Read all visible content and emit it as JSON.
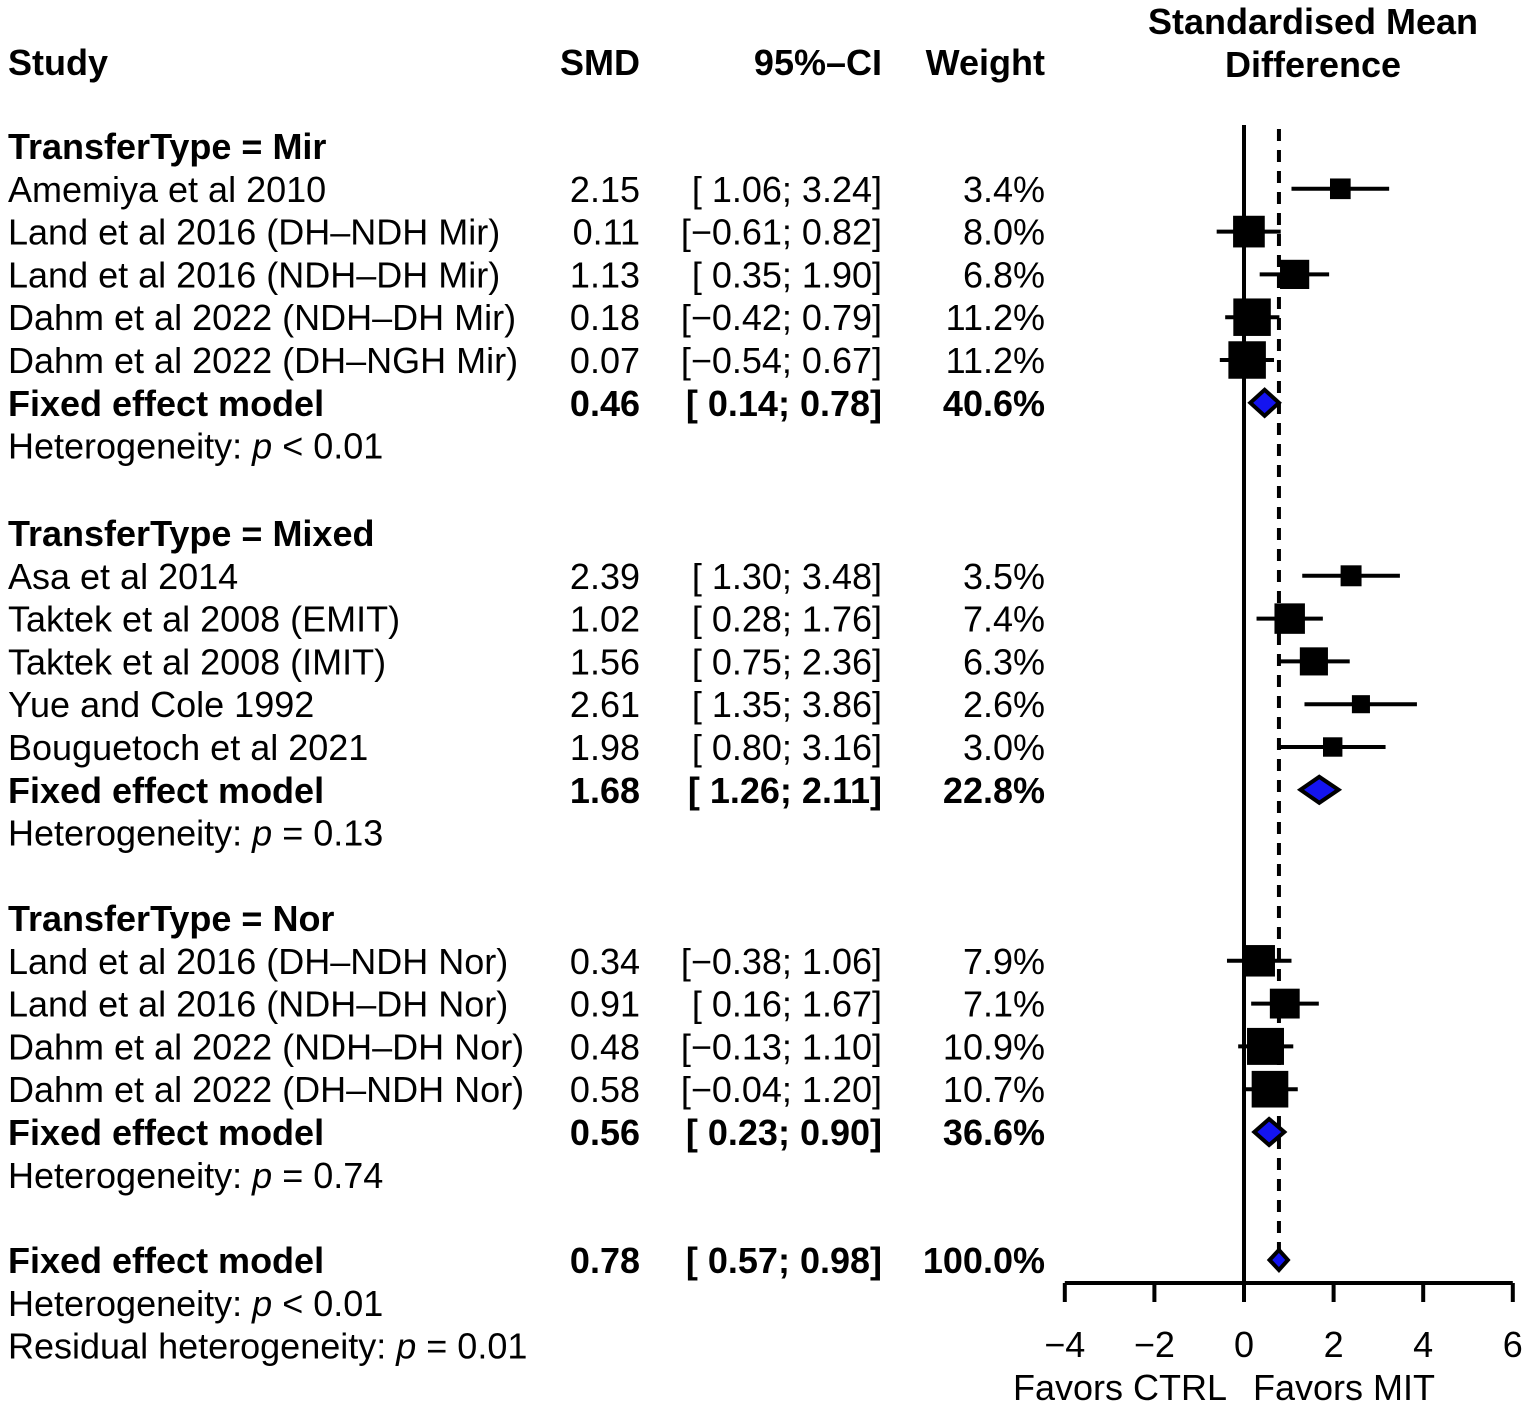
{
  "chart_data": {
    "type": "forest",
    "effect_measure": "SMD",
    "columns": {
      "study": "Study",
      "smd": "SMD",
      "ci": "95%–CI",
      "weight": "Weight"
    },
    "effect_header": [
      "Standardised Mean",
      "Difference"
    ],
    "xlabel_left": "Favors CTRL",
    "xlabel_right": "Favors MIT",
    "xlim": [
      -4,
      6
    ],
    "ticks": [
      -4,
      -2,
      0,
      2,
      4,
      6
    ],
    "tick_labels": [
      "−4",
      "−2",
      "0",
      "2",
      "4",
      "6"
    ],
    "ref_line": 0,
    "overall_line": 0.78,
    "colors": {
      "diamond_fill": "#1414f0",
      "ink": "#000000"
    },
    "groups": [
      {
        "title": "TransferType = Mir",
        "studies": [
          {
            "label": "Amemiya et al 2010",
            "smd": 2.15,
            "ci": [
              1.06,
              3.24
            ],
            "smd_text": "2.15",
            "ci_text": "[ 1.06; 3.24]",
            "weight": 3.4,
            "weight_text": "3.4%"
          },
          {
            "label": "Land et al 2016 (DH–NDH Mir)",
            "smd": 0.11,
            "ci": [
              -0.61,
              0.82
            ],
            "smd_text": "0.11",
            "ci_text": "[−0.61; 0.82]",
            "weight": 8.0,
            "weight_text": "8.0%"
          },
          {
            "label": "Land et al 2016 (NDH–DH Mir)",
            "smd": 1.13,
            "ci": [
              0.35,
              1.9
            ],
            "smd_text": "1.13",
            "ci_text": "[ 0.35; 1.90]",
            "weight": 6.8,
            "weight_text": "6.8%"
          },
          {
            "label": "Dahm et al 2022 (NDH–DH Mir)",
            "smd": 0.18,
            "ci": [
              -0.42,
              0.79
            ],
            "smd_text": "0.18",
            "ci_text": "[−0.42; 0.79]",
            "weight": 11.2,
            "weight_text": "11.2%"
          },
          {
            "label": "Dahm et al 2022 (DH–NGH Mir)",
            "smd": 0.07,
            "ci": [
              -0.54,
              0.67
            ],
            "smd_text": "0.07",
            "ci_text": "[−0.54; 0.67]",
            "weight": 11.2,
            "weight_text": "11.2%"
          }
        ],
        "fixed": {
          "label": "Fixed effect model",
          "smd": 0.46,
          "ci": [
            0.14,
            0.78
          ],
          "smd_text": "0.46",
          "ci_text": "[ 0.14; 0.78]",
          "weight_text": "40.6%"
        },
        "heterogeneity": {
          "prefix": "Heterogeneity:",
          "p": "p",
          "rest": "< 0.01"
        }
      },
      {
        "title": "TransferType = Mixed",
        "studies": [
          {
            "label": "Asa et al 2014",
            "smd": 2.39,
            "ci": [
              1.3,
              3.48
            ],
            "smd_text": "2.39",
            "ci_text": "[ 1.30; 3.48]",
            "weight": 3.5,
            "weight_text": "3.5%"
          },
          {
            "label": "Taktek et al 2008 (EMIT)",
            "smd": 1.02,
            "ci": [
              0.28,
              1.76
            ],
            "smd_text": "1.02",
            "ci_text": "[ 0.28; 1.76]",
            "weight": 7.4,
            "weight_text": "7.4%"
          },
          {
            "label": "Taktek et al 2008 (IMIT)",
            "smd": 1.56,
            "ci": [
              0.75,
              2.36
            ],
            "smd_text": "1.56",
            "ci_text": "[ 0.75; 2.36]",
            "weight": 6.3,
            "weight_text": "6.3%"
          },
          {
            "label": "Yue and Cole 1992",
            "smd": 2.61,
            "ci": [
              1.35,
              3.86
            ],
            "smd_text": "2.61",
            "ci_text": "[ 1.35; 3.86]",
            "weight": 2.6,
            "weight_text": "2.6%"
          },
          {
            "label": "Bouguetoch et al 2021",
            "smd": 1.98,
            "ci": [
              0.8,
              3.16
            ],
            "smd_text": "1.98",
            "ci_text": "[ 0.80; 3.16]",
            "weight": 3.0,
            "weight_text": "3.0%"
          }
        ],
        "fixed": {
          "label": "Fixed effect model",
          "smd": 1.68,
          "ci": [
            1.26,
            2.11
          ],
          "smd_text": "1.68",
          "ci_text": "[ 1.26; 2.11]",
          "weight_text": "22.8%"
        },
        "heterogeneity": {
          "prefix": "Heterogeneity:",
          "p": "p",
          "rest": "= 0.13"
        }
      },
      {
        "title": "TransferType = Nor",
        "studies": [
          {
            "label": "Land et al 2016 (DH–NDH Nor)",
            "smd": 0.34,
            "ci": [
              -0.38,
              1.06
            ],
            "smd_text": "0.34",
            "ci_text": "[−0.38; 1.06]",
            "weight": 7.9,
            "weight_text": "7.9%"
          },
          {
            "label": "Land et al 2016 (NDH–DH Nor)",
            "smd": 0.91,
            "ci": [
              0.16,
              1.67
            ],
            "smd_text": "0.91",
            "ci_text": "[ 0.16; 1.67]",
            "weight": 7.1,
            "weight_text": "7.1%"
          },
          {
            "label": "Dahm et al 2022 (NDH–DH Nor)",
            "smd": 0.48,
            "ci": [
              -0.13,
              1.1
            ],
            "smd_text": "0.48",
            "ci_text": "[−0.13; 1.10]",
            "weight": 10.9,
            "weight_text": "10.9%"
          },
          {
            "label": "Dahm et al 2022 (DH–NDH Nor)",
            "smd": 0.58,
            "ci": [
              -0.04,
              1.2
            ],
            "smd_text": "0.58",
            "ci_text": "[−0.04; 1.20]",
            "weight": 10.7,
            "weight_text": "10.7%"
          }
        ],
        "fixed": {
          "label": "Fixed effect model",
          "smd": 0.56,
          "ci": [
            0.23,
            0.9
          ],
          "smd_text": "0.56",
          "ci_text": "[ 0.23; 0.90]",
          "weight_text": "36.6%"
        },
        "heterogeneity": {
          "prefix": "Heterogeneity:",
          "p": "p",
          "rest": "= 0.74"
        }
      }
    ],
    "overall": {
      "label": "Fixed effect model",
      "smd": 0.78,
      "ci": [
        0.57,
        0.98
      ],
      "smd_text": "0.78",
      "ci_text": "[ 0.57; 0.98]",
      "weight_text": "100.0%",
      "heterogeneity": {
        "prefix": "Heterogeneity:",
        "p": "p",
        "rest": "< 0.01"
      },
      "residual": {
        "prefix": "Residual heterogeneity:",
        "p": "p",
        "rest": "= 0.01"
      }
    }
  }
}
